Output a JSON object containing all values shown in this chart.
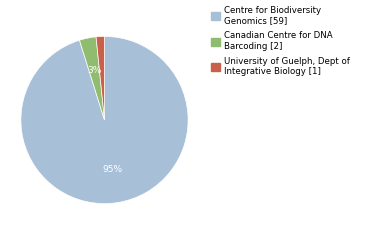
{
  "labels": [
    "Centre for Biodiversity\nGenomics [59]",
    "Canadian Centre for DNA\nBarcoding [2]",
    "University of Guelph, Dept of\nIntegrative Biology [1]"
  ],
  "values": [
    59,
    2,
    1
  ],
  "colors": [
    "#a8bfd8",
    "#8fbc6e",
    "#c9614a"
  ],
  "background_color": "#ffffff",
  "startangle": 90,
  "figsize": [
    3.8,
    2.4
  ],
  "dpi": 100
}
